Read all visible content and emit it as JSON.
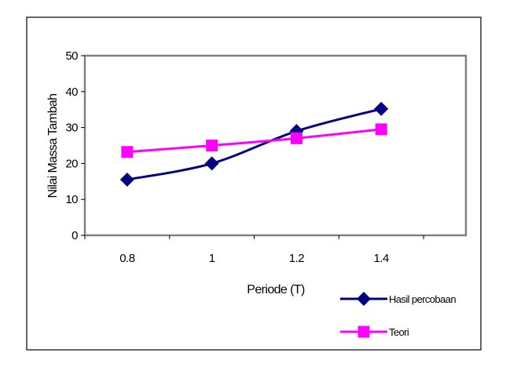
{
  "chart_data": {
    "type": "line",
    "categories": [
      "0.8",
      "1",
      "1.2",
      "1.4"
    ],
    "series": [
      {
        "name": "Hasil percobaan",
        "values": [
          15.5,
          20,
          29,
          35.2
        ],
        "color": "#000080",
        "marker": "diamond"
      },
      {
        "name": "Teori",
        "values": [
          23.2,
          25,
          27,
          29.5
        ],
        "color": "#ff00ff",
        "marker": "square"
      }
    ],
    "xlabel": "Periode (T)",
    "ylabel": "Nilai Massa Tambah",
    "ylim": [
      0,
      50
    ],
    "yticks": [
      0,
      10,
      20,
      30,
      40,
      50
    ],
    "grid": false,
    "legend_position": "bottom-right"
  }
}
